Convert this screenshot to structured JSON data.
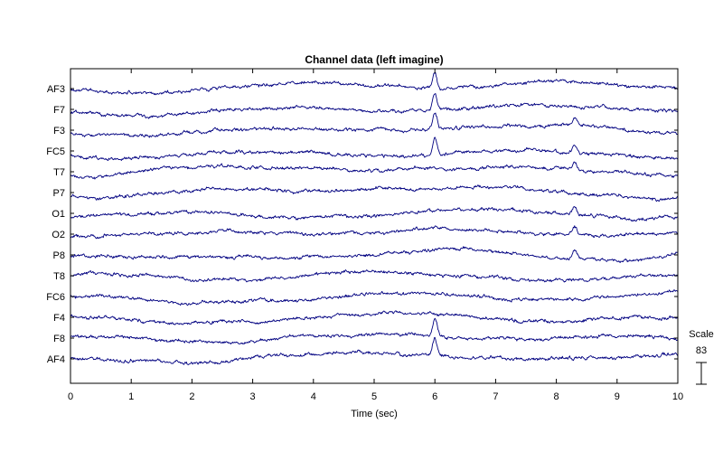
{
  "chart_data": {
    "type": "line",
    "title": "Channel data (left imagine)",
    "xlabel": "Time (sec)",
    "ylabel": "",
    "xlim": [
      0,
      10
    ],
    "x_ticks": [
      "0",
      "1",
      "2",
      "3",
      "4",
      "5",
      "6",
      "7",
      "8",
      "9",
      "10"
    ],
    "channels": [
      "AF3",
      "F7",
      "F3",
      "FC5",
      "T7",
      "P7",
      "O1",
      "O2",
      "P8",
      "T8",
      "FC6",
      "F4",
      "F8",
      "AF4"
    ],
    "line_color": "#000080",
    "grid": false,
    "scale": {
      "label": "Scale",
      "value": "83"
    },
    "events": [
      {
        "t": 6.0,
        "amplitude": 1.8,
        "channels": [
          "AF3",
          "F7",
          "F3",
          "FC5",
          "F8",
          "AF4"
        ]
      },
      {
        "t": 8.3,
        "amplitude": 0.8,
        "channels": [
          "F3",
          "FC5",
          "T7",
          "O1",
          "O2",
          "P8"
        ]
      }
    ]
  }
}
